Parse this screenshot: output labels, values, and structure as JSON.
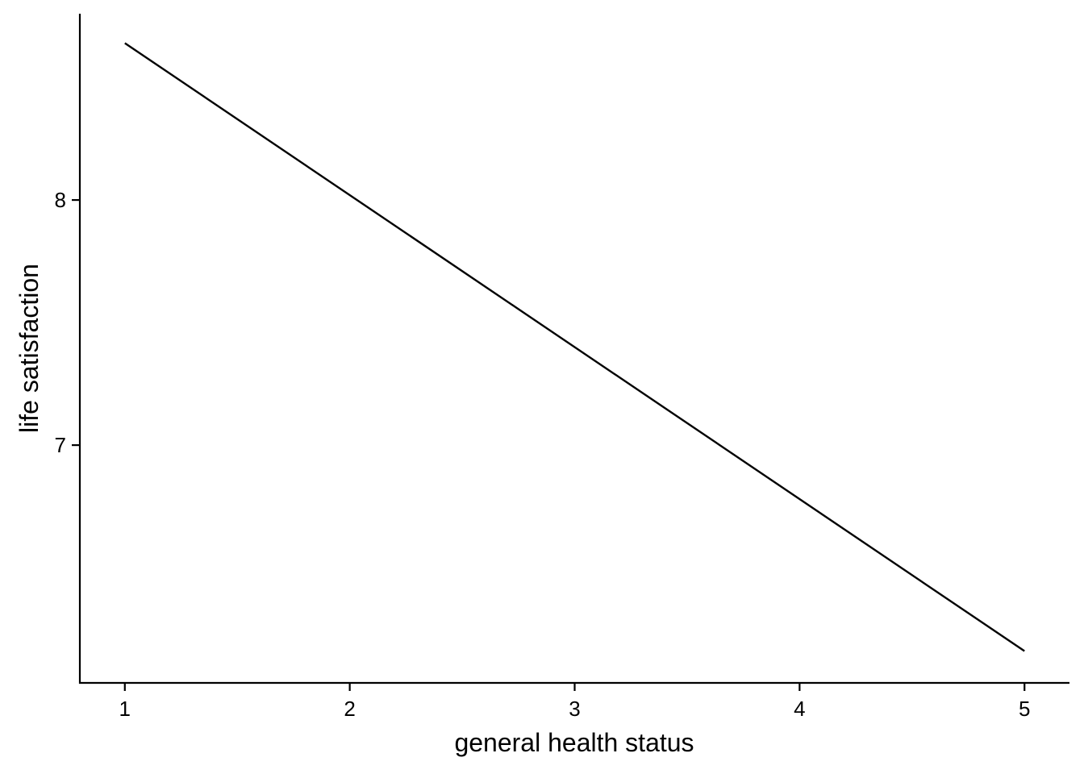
{
  "chart_data": {
    "type": "line",
    "xlabel": "general health status",
    "ylabel": "life satisfaction",
    "x_ticks": [
      1,
      2,
      3,
      4,
      5
    ],
    "y_ticks": [
      7,
      8
    ],
    "xlim": [
      0.8,
      5.2
    ],
    "ylim": [
      6.03,
      8.76
    ],
    "grid": false,
    "legend": "none",
    "series": [
      {
        "x": [
          1,
          5
        ],
        "y": [
          8.64,
          6.16
        ],
        "color": "#000000"
      }
    ]
  }
}
